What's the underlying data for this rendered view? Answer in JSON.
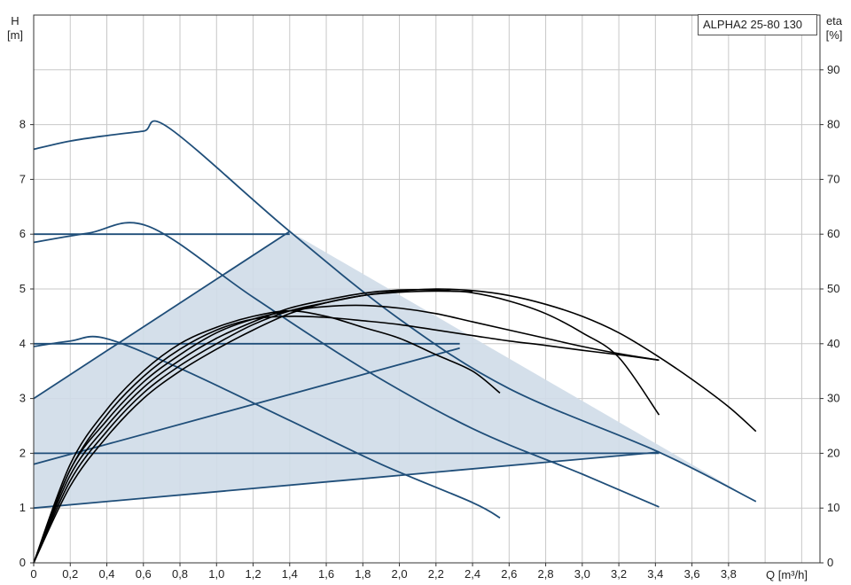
{
  "chart_data": {
    "type": "line",
    "title": "ALPHA2 25-80 130",
    "xlabel": "Q [m³/h]",
    "ylabel_left_name": "H",
    "ylabel_left_unit": "[m]",
    "ylabel_right_name": "eta",
    "ylabel_right_unit": "[%]",
    "xlim": [
      0,
      4.3
    ],
    "ylim_left": [
      0,
      10
    ],
    "ylim_right": [
      0,
      100
    ],
    "x_ticks": [
      "0",
      "0,2",
      "0,4",
      "0,6",
      "0,8",
      "1,0",
      "1,2",
      "1,4",
      "1,6",
      "1,8",
      "2,0",
      "2,2",
      "2,4",
      "2,6",
      "2,8",
      "3,0",
      "3,2",
      "3,4",
      "3,6",
      "3,8"
    ],
    "y_left_ticks": [
      "0",
      "1",
      "2",
      "3",
      "4",
      "5",
      "6",
      "7",
      "8"
    ],
    "y_right_ticks": [
      "0",
      "10",
      "20",
      "30",
      "40",
      "50",
      "60",
      "70",
      "80",
      "90"
    ],
    "grid": true,
    "colors": {
      "head": "#1f4e79",
      "eta": "#000000",
      "area_fill": "#cfdbe8",
      "grid": "#c8c8c8"
    },
    "operating_area": [
      [
        0,
        1
      ],
      [
        0,
        3
      ],
      [
        1.4,
        6.05
      ],
      [
        3.95,
        1.12
      ],
      [
        3.42,
        2.02
      ],
      [
        0,
        1
      ]
    ],
    "head_curves": [
      {
        "points": [
          [
            0,
            7.55
          ],
          [
            0.2,
            7.7
          ],
          [
            0.4,
            7.8
          ],
          [
            0.6,
            7.88
          ],
          [
            0.74,
            7.94
          ],
          [
            1.4,
            6.05
          ],
          [
            2.0,
            4.45
          ],
          [
            2.6,
            3.18
          ],
          [
            3.42,
            2.02
          ],
          [
            3.95,
            1.12
          ]
        ]
      },
      {
        "points": [
          [
            0,
            5.85
          ],
          [
            0.3,
            6.02
          ],
          [
            0.63,
            6.14
          ],
          [
            1.2,
            4.85
          ],
          [
            1.8,
            3.55
          ],
          [
            2.4,
            2.45
          ],
          [
            3.0,
            1.62
          ],
          [
            3.42,
            1.02
          ]
        ]
      },
      {
        "points": [
          [
            0,
            3.95
          ],
          [
            0.2,
            4.05
          ],
          [
            0.39,
            4.1
          ],
          [
            0.8,
            3.55
          ],
          [
            1.4,
            2.6
          ],
          [
            1.9,
            1.8
          ],
          [
            2.4,
            1.1
          ],
          [
            2.55,
            0.82
          ]
        ]
      },
      {
        "points": [
          [
            0,
            6
          ],
          [
            1.4,
            6
          ]
        ]
      },
      {
        "points": [
          [
            0,
            4
          ],
          [
            2.33,
            4
          ]
        ]
      },
      {
        "points": [
          [
            0,
            2
          ],
          [
            3.42,
            2
          ]
        ]
      },
      {
        "points": [
          [
            0,
            3
          ],
          [
            1.4,
            6.05
          ]
        ]
      },
      {
        "points": [
          [
            0,
            1.8
          ],
          [
            2.33,
            3.92
          ]
        ]
      },
      {
        "points": [
          [
            0,
            1
          ],
          [
            3.42,
            2.02
          ]
        ]
      }
    ],
    "eta_curves": [
      {
        "points": [
          [
            0,
            0
          ],
          [
            0.2,
            15
          ],
          [
            0.4,
            24
          ],
          [
            0.6,
            31
          ],
          [
            0.8,
            36
          ],
          [
            1.0,
            40
          ],
          [
            1.2,
            43.5
          ],
          [
            1.4,
            46
          ],
          [
            1.6,
            47.5
          ],
          [
            1.8,
            48.8
          ],
          [
            2.0,
            49.6
          ],
          [
            2.2,
            50
          ],
          [
            2.4,
            49.7
          ],
          [
            2.6,
            48.8
          ],
          [
            2.8,
            47.2
          ],
          [
            3.0,
            45
          ],
          [
            3.2,
            42
          ],
          [
            3.4,
            38
          ],
          [
            3.6,
            33.5
          ],
          [
            3.8,
            28.5
          ],
          [
            3.95,
            24
          ]
        ]
      },
      {
        "points": [
          [
            0,
            0
          ],
          [
            0.2,
            16
          ],
          [
            0.4,
            25
          ],
          [
            0.6,
            32
          ],
          [
            0.8,
            37
          ],
          [
            1.0,
            41
          ],
          [
            1.2,
            44
          ],
          [
            1.4,
            46.5
          ],
          [
            1.6,
            48
          ],
          [
            1.8,
            49.2
          ],
          [
            2.0,
            49.8
          ],
          [
            2.2,
            49.8
          ],
          [
            2.4,
            49.3
          ],
          [
            2.6,
            47.8
          ],
          [
            2.8,
            45.5
          ],
          [
            3.0,
            42
          ],
          [
            3.2,
            37.5
          ],
          [
            3.42,
            27
          ]
        ]
      },
      {
        "points": [
          [
            0,
            0
          ],
          [
            0.2,
            17
          ],
          [
            0.4,
            26
          ],
          [
            0.6,
            33
          ],
          [
            0.8,
            38
          ],
          [
            1.0,
            42
          ],
          [
            1.2,
            44.5
          ],
          [
            1.4,
            46
          ],
          [
            1.6,
            46.8
          ],
          [
            1.8,
            47
          ],
          [
            2.0,
            46.5
          ],
          [
            2.2,
            45.5
          ],
          [
            2.4,
            44
          ],
          [
            2.6,
            42.5
          ],
          [
            2.8,
            41
          ],
          [
            3.0,
            39.5
          ],
          [
            3.2,
            38.2
          ],
          [
            3.42,
            37
          ]
        ]
      },
      {
        "points": [
          [
            0,
            0
          ],
          [
            0.2,
            17
          ],
          [
            0.4,
            27
          ],
          [
            0.6,
            34
          ],
          [
            0.8,
            39
          ],
          [
            1.0,
            42.5
          ],
          [
            1.2,
            44.5
          ],
          [
            1.4,
            45
          ],
          [
            1.6,
            44.8
          ],
          [
            1.8,
            44.2
          ],
          [
            2.0,
            43.5
          ],
          [
            2.2,
            42.5
          ],
          [
            2.4,
            41.5
          ],
          [
            2.6,
            40.5
          ],
          [
            2.8,
            39.7
          ],
          [
            3.0,
            38.8
          ],
          [
            3.2,
            38
          ],
          [
            3.42,
            37
          ]
        ]
      },
      {
        "points": [
          [
            0,
            0
          ],
          [
            0.2,
            18
          ],
          [
            0.4,
            28
          ],
          [
            0.6,
            35
          ],
          [
            0.8,
            40
          ],
          [
            1.0,
            43
          ],
          [
            1.2,
            45
          ],
          [
            1.4,
            46
          ],
          [
            1.6,
            45
          ],
          [
            1.8,
            43
          ],
          [
            2.0,
            41
          ],
          [
            2.2,
            38
          ],
          [
            2.4,
            35
          ],
          [
            2.55,
            31
          ]
        ]
      },
      {
        "points": [
          [
            0,
            0
          ],
          [
            0.2,
            14
          ],
          [
            0.4,
            23
          ],
          [
            0.6,
            30
          ],
          [
            0.8,
            35
          ],
          [
            1.0,
            39
          ],
          [
            1.2,
            42.5
          ],
          [
            1.4,
            45.5
          ],
          [
            1.6,
            47.5
          ],
          [
            1.8,
            48.8
          ],
          [
            2.0,
            49.4
          ],
          [
            2.2,
            49.6
          ],
          [
            2.4,
            49.5
          ]
        ]
      }
    ]
  }
}
